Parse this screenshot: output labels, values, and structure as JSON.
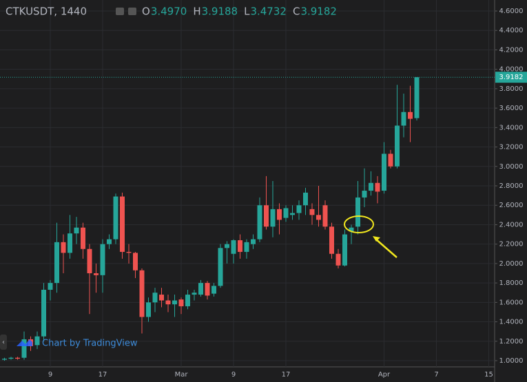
{
  "chart_data": {
    "type": "candlestick",
    "title": "CTKUSDT, 1440",
    "legend": [
      {
        "label": "O",
        "value": "3.4970"
      },
      {
        "label": "H",
        "value": "3.9188"
      },
      {
        "label": "L",
        "value": "3.4732"
      },
      {
        "label": "C",
        "value": "3.9182"
      }
    ],
    "watermark": "Chart by TradingView",
    "up_color": "#26a69a",
    "down_color": "#ef5350",
    "categories": [
      null,
      null,
      null,
      null,
      null,
      null,
      null,
      "9",
      null,
      null,
      null,
      null,
      null,
      null,
      null,
      "17",
      null,
      null,
      null,
      null,
      null,
      null,
      null,
      null,
      null,
      null,
      null,
      "Mar",
      null,
      null,
      null,
      null,
      null,
      null,
      null,
      "9",
      null,
      null,
      null,
      null,
      null,
      null,
      null,
      "17",
      null,
      null,
      null,
      null,
      null,
      null,
      null,
      null,
      null,
      null,
      null,
      null,
      null,
      null,
      "Apr",
      null,
      null,
      null,
      null,
      null,
      null,
      null,
      "7",
      null,
      null,
      null,
      null,
      null,
      null,
      null,
      "15"
    ],
    "open": [
      1.01,
      1.02,
      1.03,
      1.03,
      1.22,
      1.16,
      1.25,
      1.73,
      1.8,
      2.22,
      2.11,
      2.31,
      2.37,
      2.15,
      1.9,
      1.88,
      2.2,
      2.25,
      2.69,
      2.12,
      2.11,
      1.93,
      1.45,
      1.6,
      1.68,
      1.62,
      1.58,
      1.63,
      1.56,
      1.68,
      1.68,
      1.8,
      1.69,
      1.77,
      2.16,
      2.1,
      2.24,
      2.12,
      2.2,
      2.25,
      2.6,
      2.38,
      2.56,
      2.47,
      2.5,
      2.52,
      2.6,
      2.56,
      2.5,
      2.6,
      2.38,
      2.1,
      1.98,
      2.33,
      2.38,
      2.68,
      2.75,
      2.83,
      2.75,
      3.13,
      3.0,
      3.42,
      3.56,
      3.497,
      null,
      null,
      null,
      null,
      null,
      null,
      null,
      null,
      null,
      null,
      null
    ],
    "high": [
      1.03,
      1.04,
      1.04,
      1.3,
      1.25,
      1.3,
      1.8,
      1.83,
      2.42,
      2.3,
      2.5,
      2.48,
      2.42,
      2.2,
      2.0,
      2.25,
      2.3,
      2.72,
      2.73,
      2.2,
      2.12,
      1.95,
      1.65,
      1.75,
      1.75,
      1.68,
      1.68,
      1.65,
      1.73,
      1.73,
      1.83,
      1.82,
      1.8,
      2.2,
      2.23,
      2.25,
      2.3,
      2.25,
      2.3,
      2.68,
      2.9,
      2.85,
      2.62,
      2.6,
      2.6,
      2.65,
      2.78,
      2.62,
      2.8,
      2.65,
      2.42,
      2.15,
      2.35,
      2.4,
      2.85,
      2.98,
      2.95,
      2.9,
      3.25,
      3.17,
      3.84,
      3.75,
      3.83,
      3.9188,
      null,
      null,
      null,
      null,
      null,
      null,
      null,
      null,
      null,
      null,
      null
    ],
    "low": [
      1.0,
      1.01,
      1.01,
      1.01,
      1.1,
      1.12,
      1.2,
      1.62,
      1.7,
      1.9,
      2.05,
      2.2,
      2.05,
      1.48,
      1.7,
      1.7,
      2.15,
      2.2,
      2.05,
      2.0,
      1.85,
      1.28,
      1.4,
      1.5,
      1.55,
      1.5,
      1.45,
      1.48,
      1.53,
      1.62,
      1.66,
      1.63,
      1.66,
      1.75,
      2.0,
      2.0,
      2.05,
      2.05,
      2.15,
      2.22,
      2.35,
      2.27,
      2.3,
      2.43,
      2.45,
      2.45,
      2.5,
      2.4,
      2.38,
      2.35,
      2.05,
      1.95,
      1.97,
      2.2,
      2.3,
      2.58,
      2.7,
      2.62,
      2.72,
      2.98,
      2.98,
      3.3,
      3.25,
      3.4732,
      null,
      null,
      null,
      null,
      null,
      null,
      null,
      null,
      null,
      null,
      null
    ],
    "close": [
      1.02,
      1.03,
      1.02,
      1.22,
      1.15,
      1.25,
      1.73,
      1.8,
      2.22,
      2.11,
      2.31,
      2.37,
      2.15,
      1.9,
      1.88,
      2.2,
      2.25,
      2.69,
      2.12,
      2.11,
      1.93,
      1.45,
      1.6,
      1.7,
      1.62,
      1.58,
      1.62,
      1.56,
      1.68,
      1.7,
      1.8,
      1.67,
      1.77,
      2.16,
      2.2,
      2.24,
      2.12,
      2.22,
      2.25,
      2.6,
      2.38,
      2.56,
      2.45,
      2.57,
      2.52,
      2.6,
      2.73,
      2.5,
      2.45,
      2.38,
      2.1,
      1.98,
      2.3,
      2.37,
      2.68,
      2.75,
      2.83,
      2.74,
      3.13,
      3.0,
      3.42,
      3.56,
      3.49,
      3.9182,
      null,
      null,
      null,
      null,
      null,
      null,
      null,
      null,
      null,
      null,
      null
    ],
    "ylim": [
      1.0,
      4.6
    ],
    "yticks": [
      {
        "value": 1.0,
        "label": "1.0000"
      },
      {
        "value": 1.2,
        "label": "1.2000"
      },
      {
        "value": 1.4,
        "label": "1.4000"
      },
      {
        "value": 1.6,
        "label": "1.6000"
      },
      {
        "value": 1.8,
        "label": "1.8000"
      },
      {
        "value": 2.0,
        "label": "2.0000"
      },
      {
        "value": 2.2,
        "label": "2.2000"
      },
      {
        "value": 2.4,
        "label": "2.4000"
      },
      {
        "value": 2.6,
        "label": "2.6000"
      },
      {
        "value": 2.8,
        "label": "2.8000"
      },
      {
        "value": 3.0,
        "label": "3.0000"
      },
      {
        "value": 3.2,
        "label": "3.2000"
      },
      {
        "value": 3.4,
        "label": "3.4000"
      },
      {
        "value": 3.6,
        "label": "3.6000"
      },
      {
        "value": 3.8,
        "label": "3.8000"
      },
      {
        "value": 4.0,
        "label": "4.0000"
      },
      {
        "value": 4.2,
        "label": "4.2000"
      },
      {
        "value": 4.4,
        "label": "4.4000"
      },
      {
        "value": 4.6,
        "label": "4.6000"
      }
    ],
    "last_price": {
      "value": 3.9182,
      "label": "3.9182"
    },
    "grid": true
  }
}
